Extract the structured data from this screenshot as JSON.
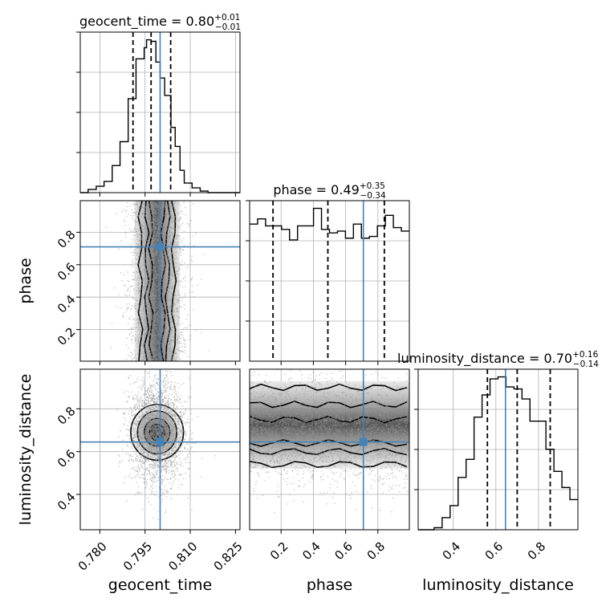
{
  "chart_data": {
    "type": "corner",
    "parameters": [
      "geocent_time",
      "phase",
      "luminosity_distance"
    ],
    "truths": {
      "geocent_time": 0.8,
      "phase": 0.71,
      "luminosity_distance": 0.645
    },
    "titles": [
      {
        "param": "geocent_time",
        "main": "geocent_time = 0.80",
        "sup": "+0.01",
        "sub": "−0.01"
      },
      {
        "param": "phase",
        "main": "phase = 0.49",
        "sup": "+0.35",
        "sub": "−0.34"
      },
      {
        "param": "luminosity_distance",
        "main": "luminosity_distance = 0.70",
        "sup": "+0.16",
        "sub": "−0.14"
      }
    ],
    "ranges": {
      "geocent_time": [
        0.7735,
        0.8265
      ],
      "phase": [
        0.005,
        0.995
      ],
      "luminosity_distance": [
        0.235,
        0.985
      ]
    },
    "ticks": {
      "geocent_time": {
        "values": [
          0.78,
          0.795,
          0.81,
          0.825
        ],
        "labels": [
          "0.780",
          "0.795",
          "0.810",
          "0.825"
        ]
      },
      "phase": {
        "values": [
          0.2,
          0.4,
          0.6,
          0.8
        ],
        "labels": [
          "0.2",
          "0.4",
          "0.6",
          "0.8"
        ]
      },
      "luminosity_distance": {
        "values": [
          0.4,
          0.6,
          0.8
        ],
        "labels": [
          "0.4",
          "0.6",
          "0.8"
        ]
      }
    },
    "quantiles": {
      "geocent_time": [
        0.791,
        0.797,
        0.8035
      ],
      "phase": [
        0.15,
        0.49,
        0.84
      ],
      "luminosity_distance": [
        0.56,
        0.7,
        0.855
      ]
    },
    "histograms": {
      "geocent_time": {
        "edges": [
          0.7735,
          0.7761,
          0.7788,
          0.7814,
          0.7841,
          0.7867,
          0.7894,
          0.792,
          0.7947,
          0.7955,
          0.797,
          0.7986,
          0.8,
          0.8015,
          0.8036,
          0.805,
          0.8066,
          0.808,
          0.8106,
          0.8133,
          0.8159,
          0.8186,
          0.8212,
          0.8239,
          0.8265
        ],
        "counts": [
          0.0,
          0.02,
          0.04,
          0.07,
          0.17,
          0.32,
          0.59,
          0.84,
          0.91,
          0.96,
          0.95,
          0.82,
          0.72,
          0.61,
          0.41,
          0.29,
          0.14,
          0.06,
          0.03,
          0.01,
          0.0,
          0.0,
          0.0,
          0.0
        ]
      },
      "phase": {
        "edges": [
          0.005,
          0.0545,
          0.104,
          0.1535,
          0.203,
          0.2525,
          0.302,
          0.3515,
          0.401,
          0.4505,
          0.5,
          0.5495,
          0.599,
          0.6485,
          0.698,
          0.7475,
          0.797,
          0.8465,
          0.896,
          0.9455,
          0.995
        ],
        "counts": [
          0.78,
          0.81,
          0.77,
          0.77,
          0.75,
          0.69,
          0.77,
          0.77,
          0.87,
          0.75,
          0.73,
          0.74,
          0.7,
          0.78,
          0.7,
          0.71,
          0.77,
          0.83,
          0.76,
          0.74
        ]
      },
      "luminosity_distance": {
        "edges": [
          0.235,
          0.2725,
          0.31,
          0.3475,
          0.385,
          0.4225,
          0.46,
          0.4975,
          0.535,
          0.5725,
          0.61,
          0.6475,
          0.685,
          0.7225,
          0.76,
          0.7975,
          0.835,
          0.8725,
          0.91,
          0.9475,
          0.985
        ],
        "counts": [
          0.0,
          0.0,
          0.01,
          0.06,
          0.12,
          0.26,
          0.35,
          0.56,
          0.67,
          0.75,
          0.76,
          0.71,
          0.7,
          0.65,
          0.54,
          0.54,
          0.4,
          0.29,
          0.21,
          0.15
        ]
      }
    },
    "xlabel": [
      "geocent_time",
      "phase",
      "luminosity_distance"
    ],
    "ylabel": [
      "phase",
      "luminosity_distance"
    ],
    "grid": true
  }
}
